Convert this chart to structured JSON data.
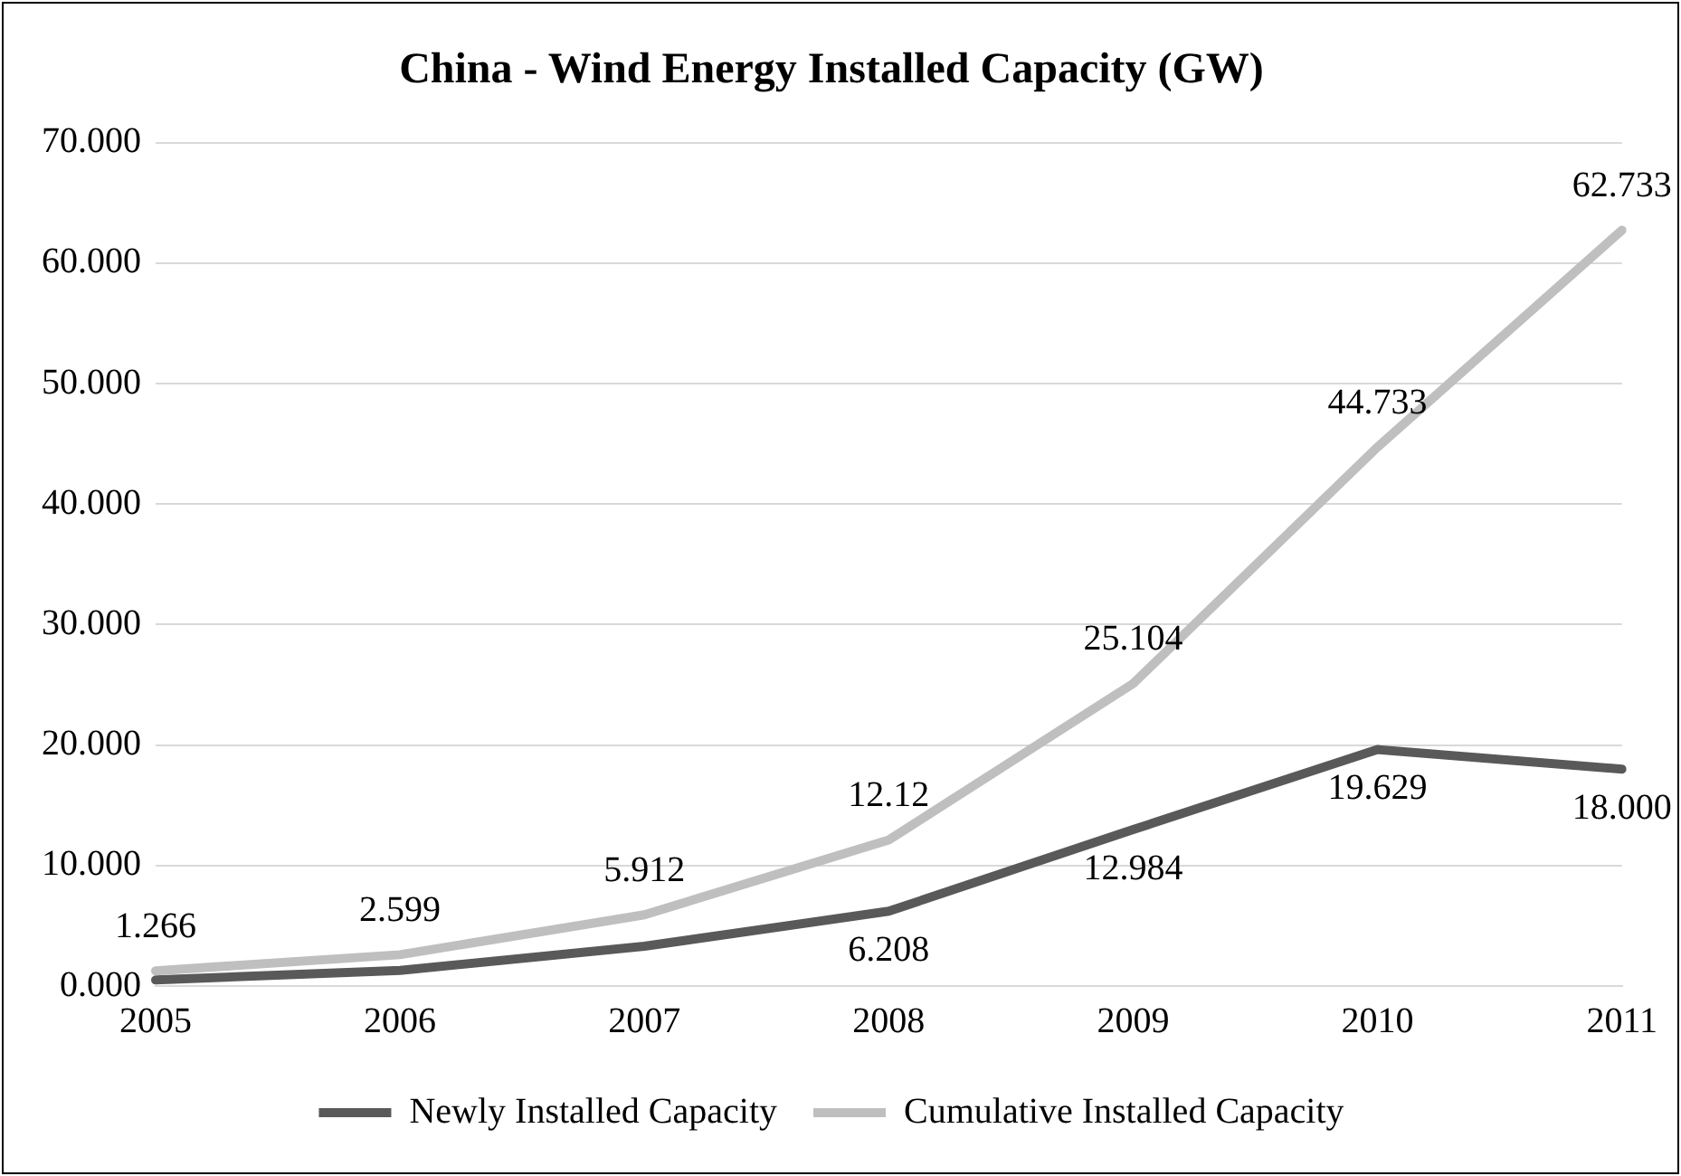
{
  "chart_data": {
    "type": "line",
    "title": "China - Wind Energy Installed Capacity (GW)",
    "categories": [
      "2005",
      "2006",
      "2007",
      "2008",
      "2009",
      "2010",
      "2011"
    ],
    "series": [
      {
        "name": "Newly Installed Capacity",
        "color": "#595959",
        "values": [
          0.5,
          1.3,
          3.3,
          6.208,
          12.984,
          19.629,
          18.0
        ],
        "value_labels": [
          null,
          null,
          null,
          "6.208",
          "12.984",
          "19.629",
          "18.000"
        ]
      },
      {
        "name": "Cumulative Installed Capacity",
        "color": "#bfbfbf",
        "values": [
          1.266,
          2.599,
          5.912,
          12.12,
          25.104,
          44.733,
          62.733
        ],
        "value_labels": [
          "1.266",
          "2.599",
          "5.912",
          "12.12",
          "25.104",
          "44.733",
          "62.733"
        ]
      }
    ],
    "ylim": [
      0,
      70
    ],
    "yticks": [
      {
        "value": 0,
        "label": "0.000"
      },
      {
        "value": 10,
        "label": "10.000"
      },
      {
        "value": 20,
        "label": "20.000"
      },
      {
        "value": 30,
        "label": "30.000"
      },
      {
        "value": 40,
        "label": "40.000"
      },
      {
        "value": 50,
        "label": "50.000"
      },
      {
        "value": 60,
        "label": "60.000"
      },
      {
        "value": 70,
        "label": "70.000"
      }
    ],
    "grid": "y",
    "legend": "bottom",
    "marker": "none",
    "line_style": "solid"
  }
}
